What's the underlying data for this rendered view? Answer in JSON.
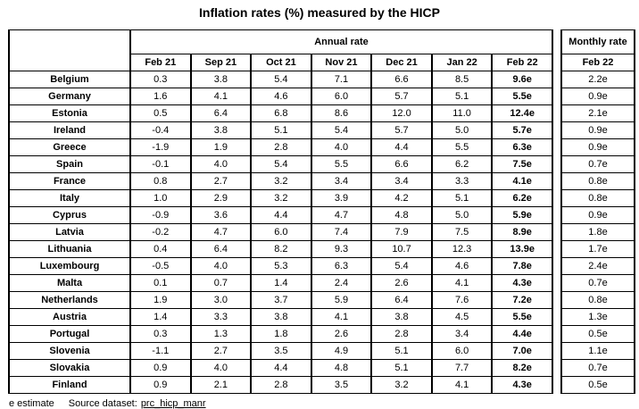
{
  "title": "Inflation rates (%) measured by the HICP",
  "annual": {
    "group_label": "Annual rate"
  },
  "monthly": {
    "group_label": "Monthly rate",
    "month_label": "Feb 22"
  },
  "footer": {
    "note": "e estimate",
    "source_label": "Source dataset:",
    "source_link": "prc_hicp_manr"
  },
  "colors": {
    "text": "#000000",
    "background": "#ffffff",
    "border": "#000000"
  },
  "chart_data": {
    "type": "table",
    "title": "Inflation rates (%) measured by the HICP",
    "column_groups": [
      "Annual rate",
      "Monthly rate"
    ],
    "annual_columns": [
      "Feb 21",
      "Sep 21",
      "Oct 21",
      "Nov 21",
      "Dec 21",
      "Jan 22",
      "Feb 22"
    ],
    "monthly_column": "Feb 22",
    "value_note": "e = estimate",
    "rows": [
      {
        "country": "Belgium",
        "annual": [
          "0.3",
          "3.8",
          "5.4",
          "7.1",
          "6.6",
          "8.5",
          "9.6e"
        ],
        "monthly": "2.2e"
      },
      {
        "country": "Germany",
        "annual": [
          "1.6",
          "4.1",
          "4.6",
          "6.0",
          "5.7",
          "5.1",
          "5.5e"
        ],
        "monthly": "0.9e"
      },
      {
        "country": "Estonia",
        "annual": [
          "0.5",
          "6.4",
          "6.8",
          "8.6",
          "12.0",
          "11.0",
          "12.4e"
        ],
        "monthly": "2.1e"
      },
      {
        "country": "Ireland",
        "annual": [
          "-0.4",
          "3.8",
          "5.1",
          "5.4",
          "5.7",
          "5.0",
          "5.7e"
        ],
        "monthly": "0.9e"
      },
      {
        "country": "Greece",
        "annual": [
          "-1.9",
          "1.9",
          "2.8",
          "4.0",
          "4.4",
          "5.5",
          "6.3e"
        ],
        "monthly": "0.9e"
      },
      {
        "country": "Spain",
        "annual": [
          "-0.1",
          "4.0",
          "5.4",
          "5.5",
          "6.6",
          "6.2",
          "7.5e"
        ],
        "monthly": "0.7e"
      },
      {
        "country": "France",
        "annual": [
          "0.8",
          "2.7",
          "3.2",
          "3.4",
          "3.4",
          "3.3",
          "4.1e"
        ],
        "monthly": "0.8e"
      },
      {
        "country": "Italy",
        "annual": [
          "1.0",
          "2.9",
          "3.2",
          "3.9",
          "4.2",
          "5.1",
          "6.2e"
        ],
        "monthly": "0.8e"
      },
      {
        "country": "Cyprus",
        "annual": [
          "-0.9",
          "3.6",
          "4.4",
          "4.7",
          "4.8",
          "5.0",
          "5.9e"
        ],
        "monthly": "0.9e"
      },
      {
        "country": "Latvia",
        "annual": [
          "-0.2",
          "4.7",
          "6.0",
          "7.4",
          "7.9",
          "7.5",
          "8.9e"
        ],
        "monthly": "1.8e"
      },
      {
        "country": "Lithuania",
        "annual": [
          "0.4",
          "6.4",
          "8.2",
          "9.3",
          "10.7",
          "12.3",
          "13.9e"
        ],
        "monthly": "1.7e"
      },
      {
        "country": "Luxembourg",
        "annual": [
          "-0.5",
          "4.0",
          "5.3",
          "6.3",
          "5.4",
          "4.6",
          "7.8e"
        ],
        "monthly": "2.4e"
      },
      {
        "country": "Malta",
        "annual": [
          "0.1",
          "0.7",
          "1.4",
          "2.4",
          "2.6",
          "4.1",
          "4.3e"
        ],
        "monthly": "0.7e"
      },
      {
        "country": "Netherlands",
        "annual": [
          "1.9",
          "3.0",
          "3.7",
          "5.9",
          "6.4",
          "7.6",
          "7.2e"
        ],
        "monthly": "0.8e"
      },
      {
        "country": "Austria",
        "annual": [
          "1.4",
          "3.3",
          "3.8",
          "4.1",
          "3.8",
          "4.5",
          "5.5e"
        ],
        "monthly": "1.3e"
      },
      {
        "country": "Portugal",
        "annual": [
          "0.3",
          "1.3",
          "1.8",
          "2.6",
          "2.8",
          "3.4",
          "4.4e"
        ],
        "monthly": "0.5e"
      },
      {
        "country": "Slovenia",
        "annual": [
          "-1.1",
          "2.7",
          "3.5",
          "4.9",
          "5.1",
          "6.0",
          "7.0e"
        ],
        "monthly": "1.1e"
      },
      {
        "country": "Slovakia",
        "annual": [
          "0.9",
          "4.0",
          "4.4",
          "4.8",
          "5.1",
          "7.7",
          "8.2e"
        ],
        "monthly": "0.7e"
      },
      {
        "country": "Finland",
        "annual": [
          "0.9",
          "2.1",
          "2.8",
          "3.5",
          "3.2",
          "4.1",
          "4.3e"
        ],
        "monthly": "0.5e"
      }
    ]
  }
}
